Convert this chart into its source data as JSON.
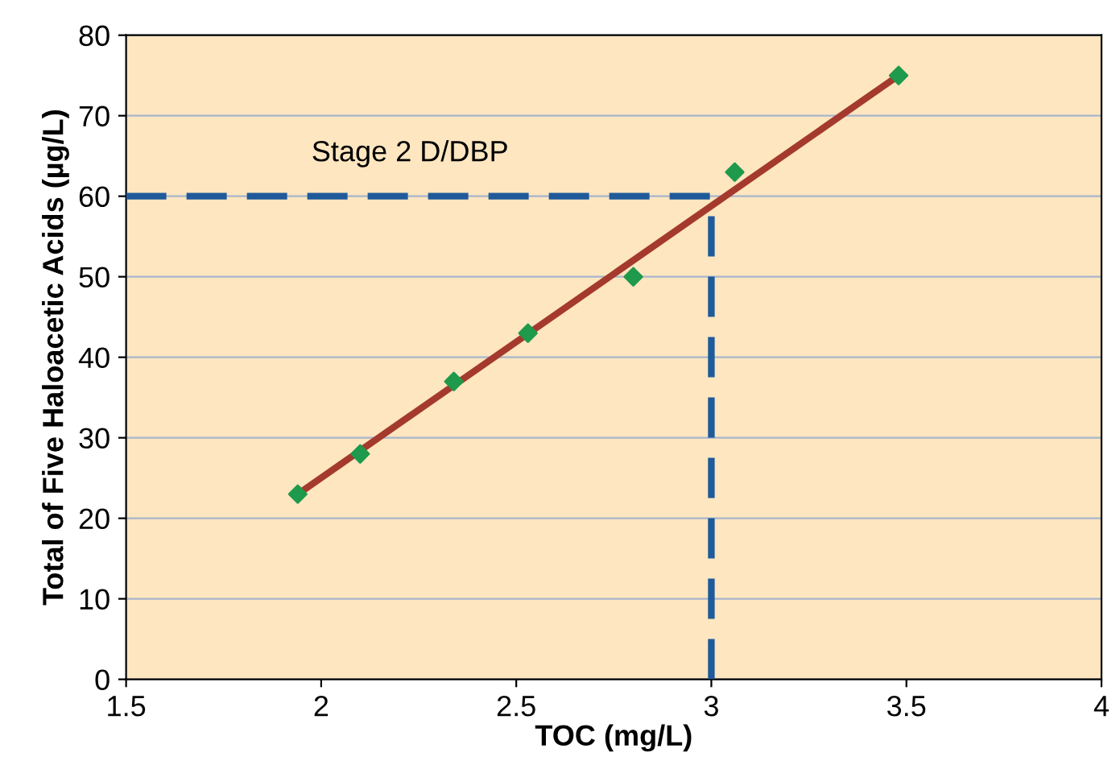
{
  "chart_data": {
    "type": "line",
    "xlabel": "TOC (mg/L)",
    "ylabel": "Total of Five Haloacetic Acids (µg/L)",
    "xlim": [
      1.5,
      4
    ],
    "xticks": [
      1.5,
      2,
      2.5,
      3,
      3.5,
      4
    ],
    "ylim": [
      0,
      80
    ],
    "yticks": [
      0,
      10,
      20,
      30,
      40,
      50,
      60,
      70,
      80
    ],
    "grid": "y",
    "series": [
      {
        "type": "scatter",
        "marker": "diamond",
        "color": "#1f9a4c",
        "x": [
          1.94,
          2.1,
          2.34,
          2.53,
          2.8,
          3.06,
          3.48
        ],
        "values": [
          23,
          28,
          37,
          43,
          50,
          63,
          75
        ]
      },
      {
        "color": "#a43a2e",
        "line_style": "solid",
        "x": [
          1.94,
          3.48
        ],
        "values": [
          23,
          75
        ]
      },
      {
        "color": "#1f5a9a",
        "line_style": "dashed",
        "x": [
          1.5,
          3.0
        ],
        "values": [
          60,
          60
        ]
      },
      {
        "color": "#1f5a9a",
        "line_style": "dashed",
        "x": [
          3.0,
          3.0
        ],
        "values": [
          0,
          60
        ]
      }
    ],
    "annotations": [
      "Stage 2 D/DBP"
    ]
  }
}
